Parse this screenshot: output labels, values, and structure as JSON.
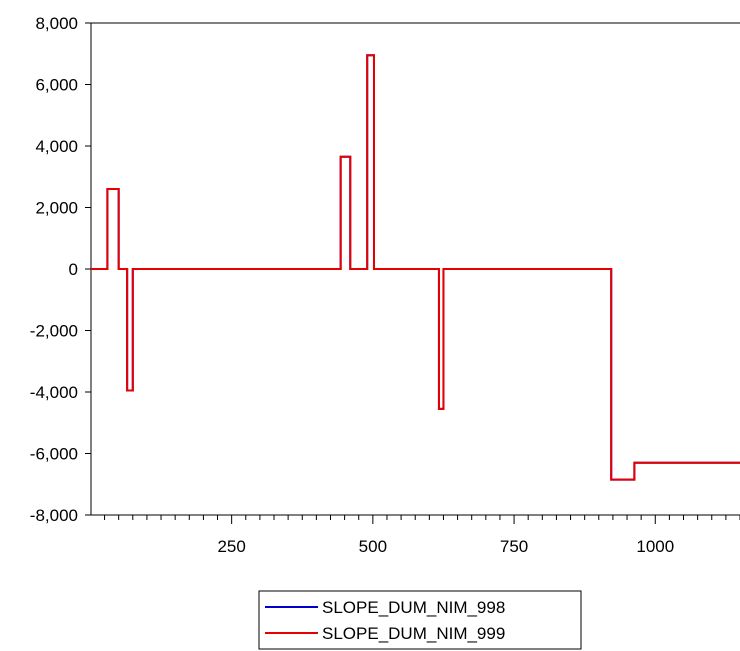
{
  "chart_data": {
    "type": "line",
    "title": "",
    "xlabel": "",
    "ylabel": "",
    "xlim": [
      1,
      1150
    ],
    "ylim": [
      -8000,
      8000
    ],
    "x_ticks": [
      250,
      500,
      750,
      1000
    ],
    "x_tick_labels": [
      "250",
      "500",
      "750",
      "1000"
    ],
    "y_ticks": [
      8000,
      6000,
      4000,
      2000,
      0,
      -2000,
      -4000,
      -6000,
      -8000
    ],
    "y_tick_labels": [
      "8,000",
      "6,000",
      "4,000",
      "2,000",
      "0",
      "-2,000",
      "-4,000",
      "-6,000",
      "-8,000"
    ],
    "grid": false,
    "legend_position": "bottom-center",
    "series": [
      {
        "name": "SLOPE_DUM_NIM_998",
        "color": "#0000cc",
        "x": [
          1,
          30,
          30,
          50,
          50,
          65,
          65,
          75,
          75,
          443,
          443,
          460,
          460,
          490,
          490,
          502,
          502,
          540,
          540,
          617,
          617,
          625,
          625,
          922,
          922,
          963,
          963,
          1150
        ],
        "y": [
          0,
          0,
          2600,
          2600,
          0,
          0,
          -3950,
          -3950,
          0,
          0,
          3650,
          3650,
          0,
          0,
          6950,
          6950,
          0,
          0,
          0,
          0,
          -4550,
          -4550,
          0,
          0,
          -6850,
          -6850,
          -6300,
          -6300
        ]
      },
      {
        "name": "SLOPE_DUM_NIM_999",
        "color": "#e60000",
        "x": [
          1,
          30,
          30,
          50,
          50,
          65,
          65,
          75,
          75,
          443,
          443,
          460,
          460,
          490,
          490,
          502,
          502,
          540,
          540,
          617,
          617,
          625,
          625,
          922,
          922,
          963,
          963,
          1150
        ],
        "y": [
          0,
          0,
          2600,
          2600,
          0,
          0,
          -3950,
          -3950,
          0,
          0,
          3650,
          3650,
          0,
          0,
          6950,
          6950,
          0,
          0,
          0,
          0,
          -4550,
          -4550,
          0,
          0,
          -6850,
          -6850,
          -6300,
          -6300
        ]
      }
    ]
  }
}
